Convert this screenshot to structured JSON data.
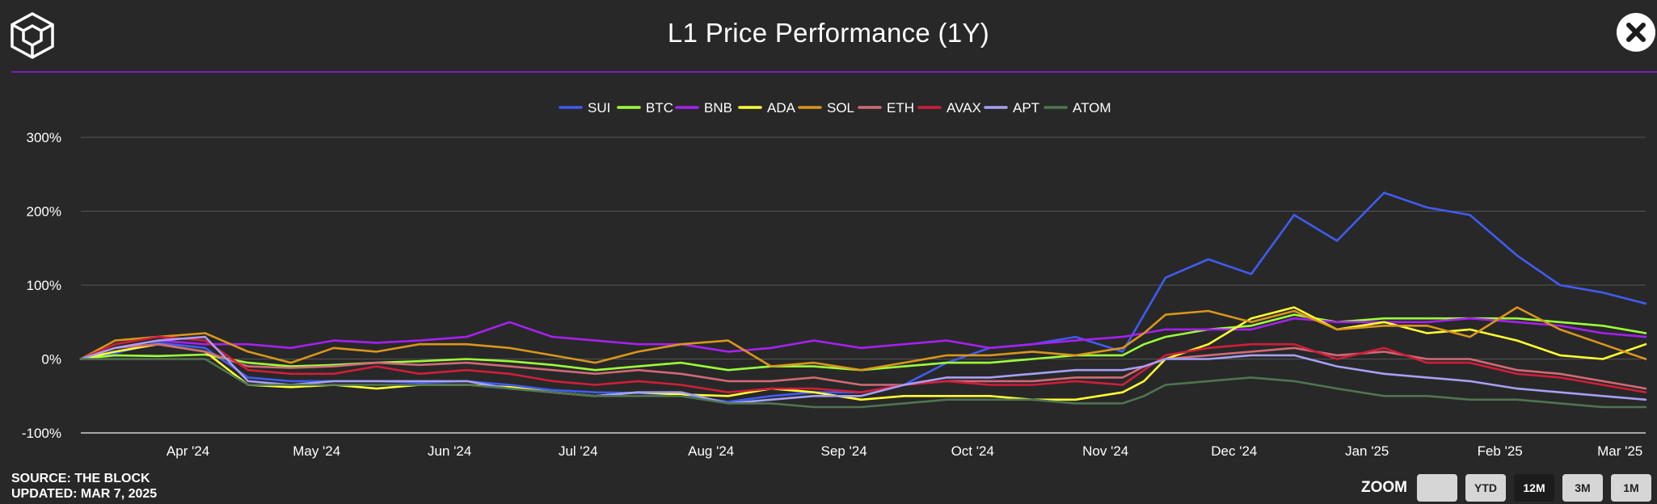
{
  "header": {
    "title": "L1 Price Performance (1Y)",
    "logo_icon": "the-block-cube-logo",
    "close_icon": "close-icon"
  },
  "footer": {
    "source": "SOURCE: THE BLOCK",
    "updated": "UPDATED: MAR 7, 2025"
  },
  "zoom": {
    "label": "ZOOM",
    "buttons": [
      {
        "label": "",
        "active": false
      },
      {
        "label": "YTD",
        "active": false
      },
      {
        "label": "12M",
        "active": true
      },
      {
        "label": "3M",
        "active": false
      },
      {
        "label": "1M",
        "active": false
      }
    ]
  },
  "chart_data": {
    "type": "line",
    "title": "L1 Price Performance (1Y)",
    "xlabel": "",
    "ylabel": "",
    "y_unit": "%",
    "ylim": [
      -100,
      300
    ],
    "y_ticks": [
      -100,
      0,
      100,
      200,
      300
    ],
    "y_tick_labels": [
      "-100%",
      "0%",
      "100%",
      "200%",
      "300%"
    ],
    "x_tick_labels": [
      "Apr '24",
      "May '24",
      "Jun '24",
      "Jul '24",
      "Aug '24",
      "Sep '24",
      "Oct '24",
      "Nov '24",
      "Dec '24",
      "Jan '25",
      "Feb '25",
      "Mar '25"
    ],
    "x_tick_dates": [
      "2024-04-01",
      "2024-05-01",
      "2024-06-01",
      "2024-07-01",
      "2024-08-01",
      "2024-09-01",
      "2024-10-01",
      "2024-11-01",
      "2024-12-01",
      "2025-01-01",
      "2025-02-01",
      "2025-03-01"
    ],
    "x_range": [
      "2024-03-07",
      "2025-03-07"
    ],
    "grid": true,
    "legend_position": "top-center",
    "x": [
      "2024-03-07",
      "2024-03-15",
      "2024-03-25",
      "2024-04-05",
      "2024-04-15",
      "2024-04-25",
      "2024-05-05",
      "2024-05-15",
      "2024-05-25",
      "2024-06-05",
      "2024-06-15",
      "2024-06-25",
      "2024-07-05",
      "2024-07-15",
      "2024-07-25",
      "2024-08-05",
      "2024-08-15",
      "2024-08-25",
      "2024-09-05",
      "2024-09-15",
      "2024-09-25",
      "2024-10-05",
      "2024-10-15",
      "2024-10-25",
      "2024-11-05",
      "2024-11-10",
      "2024-11-15",
      "2024-11-25",
      "2024-12-05",
      "2024-12-15",
      "2024-12-25",
      "2025-01-05",
      "2025-01-15",
      "2025-01-25",
      "2025-02-05",
      "2025-02-15",
      "2025-02-25",
      "2025-03-07"
    ],
    "series": [
      {
        "name": "SUI",
        "color": "#3f5cf0",
        "values": [
          0,
          8,
          22,
          15,
          -25,
          -30,
          -30,
          -30,
          -32,
          -30,
          -35,
          -42,
          -45,
          -46,
          -48,
          -58,
          -50,
          -45,
          -45,
          -35,
          -5,
          15,
          20,
          30,
          10,
          60,
          110,
          135,
          115,
          195,
          160,
          225,
          205,
          195,
          140,
          100,
          90,
          75
        ]
      },
      {
        "name": "BTC",
        "color": "#9cff3a",
        "values": [
          0,
          5,
          4,
          6,
          -5,
          -10,
          -8,
          -5,
          -3,
          0,
          -3,
          -8,
          -15,
          -10,
          -5,
          -15,
          -10,
          -10,
          -15,
          -10,
          -5,
          -5,
          0,
          5,
          5,
          20,
          30,
          40,
          45,
          60,
          50,
          55,
          55,
          55,
          55,
          50,
          45,
          35
        ]
      },
      {
        "name": "BNB",
        "color": "#a620f0",
        "values": [
          0,
          15,
          25,
          20,
          20,
          15,
          25,
          22,
          25,
          30,
          50,
          30,
          25,
          20,
          20,
          10,
          15,
          25,
          15,
          20,
          25,
          15,
          20,
          25,
          30,
          35,
          40,
          40,
          40,
          55,
          50,
          50,
          50,
          55,
          50,
          45,
          35,
          30
        ]
      },
      {
        "name": "ADA",
        "color": "#ffff33",
        "values": [
          0,
          10,
          20,
          10,
          -35,
          -38,
          -35,
          -40,
          -35,
          -35,
          -38,
          -45,
          -50,
          -45,
          -48,
          -50,
          -40,
          -45,
          -55,
          -50,
          -50,
          -50,
          -55,
          -55,
          -45,
          -30,
          0,
          20,
          55,
          70,
          40,
          50,
          35,
          40,
          25,
          5,
          0,
          20
        ]
      },
      {
        "name": "SOL",
        "color": "#d9961c",
        "values": [
          0,
          25,
          30,
          35,
          10,
          -5,
          15,
          10,
          20,
          20,
          15,
          5,
          -5,
          10,
          20,
          25,
          -10,
          -5,
          -15,
          -5,
          5,
          5,
          10,
          5,
          15,
          35,
          60,
          65,
          50,
          65,
          40,
          45,
          45,
          30,
          70,
          40,
          20,
          0
        ]
      },
      {
        "name": "ETH",
        "color": "#d06a76",
        "values": [
          0,
          15,
          20,
          10,
          -10,
          -12,
          -10,
          -5,
          -8,
          -5,
          -10,
          -15,
          -20,
          -15,
          -20,
          -30,
          -30,
          -25,
          -35,
          -35,
          -30,
          -30,
          -30,
          -25,
          -25,
          -10,
          0,
          5,
          10,
          15,
          5,
          10,
          0,
          0,
          -15,
          -20,
          -30,
          -40
        ]
      },
      {
        "name": "AVAX",
        "color": "#d01e3a",
        "values": [
          0,
          20,
          30,
          25,
          -15,
          -20,
          -20,
          -10,
          -20,
          -15,
          -20,
          -30,
          -35,
          -30,
          -35,
          -45,
          -40,
          -40,
          -45,
          -35,
          -30,
          -35,
          -35,
          -30,
          -35,
          -15,
          5,
          15,
          20,
          20,
          0,
          15,
          -5,
          -5,
          -20,
          -25,
          -35,
          -45
        ]
      },
      {
        "name": "APT",
        "color": "#a6a0f5",
        "values": [
          0,
          15,
          25,
          30,
          -30,
          -35,
          -30,
          -30,
          -30,
          -30,
          -40,
          -45,
          -50,
          -45,
          -45,
          -60,
          -55,
          -50,
          -50,
          -35,
          -25,
          -25,
          -20,
          -15,
          -15,
          -10,
          0,
          0,
          5,
          5,
          -10,
          -20,
          -25,
          -30,
          -40,
          -45,
          -50,
          -55
        ]
      },
      {
        "name": "ATOM",
        "color": "#4f7550",
        "values": [
          0,
          0,
          0,
          0,
          -35,
          -35,
          -35,
          -35,
          -35,
          -35,
          -40,
          -45,
          -50,
          -50,
          -50,
          -60,
          -60,
          -65,
          -65,
          -60,
          -55,
          -55,
          -55,
          -60,
          -60,
          -50,
          -35,
          -30,
          -25,
          -30,
          -40,
          -50,
          -50,
          -55,
          -55,
          -60,
          -65,
          -65
        ]
      }
    ]
  }
}
